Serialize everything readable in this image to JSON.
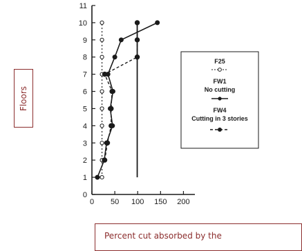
{
  "chart_data": {
    "type": "line",
    "xlabel": "Percent cut absorbed by the",
    "ylabel": "Floors",
    "xlim": [
      0,
      225
    ],
    "ylim": [
      0,
      11
    ],
    "xticks": [
      "0",
      "50",
      "100",
      "150",
      "200"
    ],
    "yticks": [
      "0",
      "1",
      "2",
      "3",
      "4",
      "5",
      "6",
      "7",
      "8",
      "9",
      "10",
      "11"
    ],
    "legend_position": "right",
    "series": [
      {
        "name": "F25",
        "style": "dotted line, open circles",
        "points": [
          [
            22,
            1
          ],
          [
            22,
            2
          ],
          [
            22,
            3
          ],
          [
            22,
            4
          ],
          [
            22,
            5
          ],
          [
            22,
            6
          ],
          [
            22,
            7
          ],
          [
            22,
            8
          ],
          [
            22,
            9
          ],
          [
            22,
            10
          ]
        ]
      },
      {
        "name": "FW1 No cutting",
        "style": "solid line, filled dots",
        "points": [
          [
            12,
            1
          ],
          [
            27,
            2
          ],
          [
            32,
            3
          ],
          [
            45,
            4
          ],
          [
            40,
            5
          ],
          [
            46,
            6
          ],
          [
            35,
            7
          ],
          [
            50,
            8
          ],
          [
            64,
            9
          ],
          [
            143,
            10
          ]
        ]
      },
      {
        "name": "FW4 Cutting in 3 stories",
        "style": "dashed line, filled dots",
        "points": [
          [
            28,
            2
          ],
          [
            34,
            3
          ],
          [
            42,
            4
          ],
          [
            42,
            5
          ],
          [
            44,
            6
          ],
          [
            28,
            7
          ],
          [
            99,
            8
          ],
          [
            99,
            9
          ],
          [
            99,
            10
          ]
        ]
      }
    ],
    "extra_line": {
      "x": 99,
      "y_from": 1,
      "y_to": 10
    },
    "legend": [
      {
        "name": "F25",
        "label": "F25"
      },
      {
        "name": "FW1 No cutting",
        "label": "FW1\nNo cutting"
      },
      {
        "name": "FW4 Cutting in 3 stories",
        "label": "FW4\nCutting in 3 stories"
      }
    ]
  }
}
